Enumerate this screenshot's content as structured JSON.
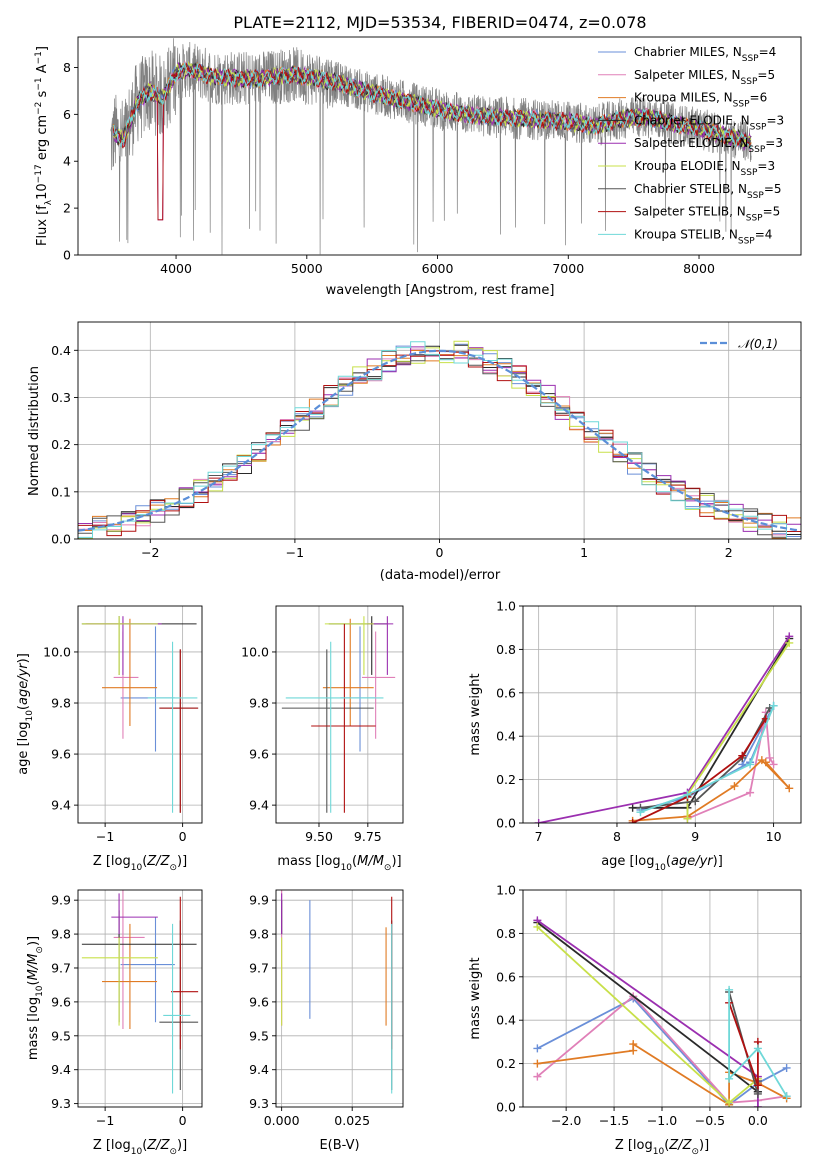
{
  "title": "PLATE=2112, MJD=53534, FIBERID=0474, z=0.078",
  "colors": {
    "data_spectrum": "#808080",
    "chabrier_miles": "#6a8fd8",
    "salpeter_miles": "#e080b8",
    "kroupa_miles": "#e07b24",
    "chabrier_elodie": "#2a2a2a",
    "salpeter_elodie": "#9b2fb0",
    "kroupa_elodie": "#c8e04a",
    "chabrier_stelib": "#555555",
    "salpeter_stelib": "#b01010",
    "kroupa_stelib": "#6fd8d8",
    "normal_curve": "#5b8fd8",
    "grid": "#b0b0b0"
  },
  "chart_data": [
    {
      "id": "spectrum",
      "type": "line",
      "xlabel": "wavelength [Angstrom, rest frame]",
      "ylabel": "Flux [f_λ 10^-17 erg cm^-2 s^-1 A^-1]",
      "xlim": [
        3250,
        8780
      ],
      "ylim": [
        0,
        9.3
      ],
      "xticks": [
        "4000",
        "5000",
        "6000",
        "7000",
        "8000"
      ],
      "yticks": [
        "0",
        "2",
        "4",
        "6",
        "8"
      ],
      "grid": false,
      "legend_position": "upper-right",
      "legend": [
        "Chabrier MILES, N_SSP=4",
        "Salpeter MILES, N_SSP=5",
        "Kroupa MILES, N_SSP=6",
        "Chabrier ELODIE, N_SSP=3",
        "Salpeter ELODIE, N_SSP=3",
        "Kroupa ELODIE, N_SSP=3",
        "Chabrier STELIB, N_SSP=5",
        "Salpeter STELIB, N_SSP=5",
        "Kroupa STELIB, N_SSP=4"
      ],
      "data_range": [
        3500,
        8400
      ],
      "model_continuum": [
        [
          3520,
          5.2
        ],
        [
          3600,
          4.9
        ],
        [
          3700,
          6.5
        ],
        [
          3800,
          7.0
        ],
        [
          3900,
          6.7
        ],
        [
          4000,
          7.8
        ],
        [
          4100,
          7.9
        ],
        [
          4300,
          7.6
        ],
        [
          4600,
          7.5
        ],
        [
          4900,
          7.7
        ],
        [
          5200,
          7.4
        ],
        [
          5500,
          6.9
        ],
        [
          5800,
          6.5
        ],
        [
          6100,
          6.1
        ],
        [
          6400,
          5.9
        ],
        [
          6700,
          5.8
        ],
        [
          7000,
          5.7
        ],
        [
          7200,
          5.5
        ],
        [
          7400,
          5.8
        ],
        [
          7600,
          5.9
        ],
        [
          7800,
          5.6
        ],
        [
          8000,
          5.4
        ],
        [
          8200,
          5.1
        ],
        [
          8400,
          4.8
        ]
      ]
    },
    {
      "id": "residual-histogram",
      "type": "line",
      "xlabel": "(data-model)/error",
      "ylabel": "Normed distribution",
      "xlim": [
        -2.5,
        2.5
      ],
      "ylim": [
        0,
        0.46
      ],
      "xticks": [
        "−2",
        "−1",
        "0",
        "1",
        "2"
      ],
      "yticks": [
        "0.0",
        "0.1",
        "0.2",
        "0.3",
        "0.4"
      ],
      "grid": true,
      "legend": [
        "𝒩(0,1)"
      ],
      "legend_position": "upper-right",
      "bin_width": 0.1
    },
    {
      "id": "age-vs-z",
      "type": "scatter",
      "xlabel": "Z [log10(Z/Z⊙)]",
      "ylabel": "age [log10(age/yr)]",
      "xlim": [
        -1.35,
        0.25
      ],
      "ylim": [
        9.33,
        10.18
      ],
      "xticks": [
        "−1",
        "0"
      ],
      "yticks": [
        "9.4",
        "9.6",
        "9.8",
        "10.0"
      ],
      "grid": true,
      "points": [
        {
          "model": "chabrier_miles",
          "x": -0.35,
          "xerr": [
            0.45,
            0.25
          ],
          "y": 9.82,
          "yerr": [
            0.21,
            0.28
          ]
        },
        {
          "model": "salpeter_miles",
          "x": -0.77,
          "xerr": [
            0.12,
            0.2
          ],
          "y": 9.9,
          "yerr": [
            0.24,
            0.18
          ]
        },
        {
          "model": "kroupa_miles",
          "x": -0.68,
          "xerr": [
            0.36,
            0.35
          ],
          "y": 9.86,
          "yerr": [
            0.15,
            0.27
          ]
        },
        {
          "model": "chabrier_elodie",
          "x": -0.82,
          "xerr": [
            0.48,
            1.0
          ],
          "y": 10.11,
          "yerr": [
            0.2,
            0.03
          ]
        },
        {
          "model": "salpeter_elodie",
          "x": -0.77,
          "xerr": [
            0.48,
            0.5
          ],
          "y": 10.11,
          "yerr": [
            0.2,
            0.03
          ]
        },
        {
          "model": "kroupa_elodie",
          "x": -0.82,
          "xerr": [
            0.48,
            0.5
          ],
          "y": 10.11,
          "yerr": [
            0.2,
            0.03
          ]
        },
        {
          "model": "chabrier_stelib",
          "x": -0.03,
          "xerr": [
            0.27,
            0.23
          ],
          "y": 9.78,
          "yerr": [
            0.41,
            0.23
          ]
        },
        {
          "model": "salpeter_stelib",
          "x": -0.03,
          "xerr": [
            0.27,
            0.23
          ],
          "y": 9.78,
          "yerr": [
            0.41,
            0.23
          ]
        },
        {
          "model": "kroupa_stelib",
          "x": -0.13,
          "xerr": [
            0.32,
            0.32
          ],
          "y": 9.82,
          "yerr": [
            0.45,
            0.22
          ]
        }
      ]
    },
    {
      "id": "age-vs-mass",
      "type": "scatter",
      "xlabel": "mass [log10(M/M⊙)]",
      "ylabel": "",
      "xlim": [
        9.28,
        9.93
      ],
      "ylim": [
        9.33,
        10.18
      ],
      "xticks": [
        "9.50",
        "9.75"
      ],
      "yticks": [
        "9.4",
        "9.6",
        "9.8",
        "10.0"
      ],
      "grid": true,
      "points": [
        {
          "model": "chabrier_miles",
          "x": 9.71,
          "xerr": [
            0.1,
            0.08
          ],
          "y": 9.82,
          "yerr": [
            0.21,
            0.28
          ]
        },
        {
          "model": "salpeter_miles",
          "x": 9.79,
          "xerr": [
            0.07,
            0.1
          ],
          "y": 9.9,
          "yerr": [
            0.24,
            0.18
          ]
        },
        {
          "model": "kroupa_miles",
          "x": 9.66,
          "xerr": [
            0.14,
            0.12
          ],
          "y": 9.86,
          "yerr": [
            0.15,
            0.27
          ]
        },
        {
          "model": "chabrier_elodie",
          "x": 9.77,
          "xerr": [
            0.22,
            0.08
          ],
          "y": 10.11,
          "yerr": [
            0.2,
            0.03
          ]
        },
        {
          "model": "salpeter_elodie",
          "x": 9.85,
          "xerr": [
            0.1,
            0.03
          ],
          "y": 10.11,
          "yerr": [
            0.2,
            0.03
          ]
        },
        {
          "model": "kroupa_elodie",
          "x": 9.73,
          "xerr": [
            0.2,
            0.05
          ],
          "y": 10.11,
          "yerr": [
            0.2,
            0.03
          ]
        },
        {
          "model": "chabrier_stelib",
          "x": 9.54,
          "xerr": [
            0.23,
            0.24
          ],
          "y": 9.78,
          "yerr": [
            0.41,
            0.23
          ]
        },
        {
          "model": "salpeter_stelib",
          "x": 9.63,
          "xerr": [
            0.17,
            0.16
          ],
          "y": 9.71,
          "yerr": [
            0.34,
            0.4
          ]
        },
        {
          "model": "kroupa_stelib",
          "x": 9.56,
          "xerr": [
            0.23,
            0.27
          ],
          "y": 9.82,
          "yerr": [
            0.45,
            0.22
          ]
        }
      ]
    },
    {
      "id": "mass-weight-vs-age",
      "type": "line",
      "xlabel": "age [log10(age/yr)]",
      "ylabel": "mass weight",
      "xlim": [
        6.8,
        10.35
      ],
      "ylim": [
        0,
        1.0
      ],
      "xticks": [
        "7",
        "8",
        "9",
        "10"
      ],
      "yticks": [
        "0.0",
        "0.2",
        "0.4",
        "0.6",
        "0.8",
        "1.0"
      ],
      "grid": true,
      "series": [
        {
          "model": "chabrier_miles",
          "x": [
            8.3,
            8.9,
            9.7,
            10.0,
            9.6
          ],
          "y": [
            0.06,
            0.12,
            0.28,
            0.54,
            0.27
          ]
        },
        {
          "model": "salpeter_miles",
          "x": [
            8.9,
            9.7,
            9.9,
            9.95,
            10.0
          ],
          "y": [
            0.02,
            0.14,
            0.51,
            0.3,
            0.27
          ]
        },
        {
          "model": "kroupa_miles",
          "x": [
            8.2,
            8.9,
            9.5,
            9.85,
            10.2,
            9.9
          ],
          "y": [
            0.01,
            0.03,
            0.17,
            0.29,
            0.16,
            0.28
          ]
        },
        {
          "model": "chabrier_elodie",
          "x": [
            8.2,
            8.9,
            10.2
          ],
          "y": [
            0.07,
            0.07,
            0.85
          ]
        },
        {
          "model": "salpeter_elodie",
          "x": [
            7.0,
            8.9,
            10.2
          ],
          "y": [
            0.0,
            0.14,
            0.86
          ]
        },
        {
          "model": "kroupa_elodie",
          "x": [
            8.9,
            8.9,
            10.2
          ],
          "y": [
            0.02,
            0.13,
            0.83
          ]
        },
        {
          "model": "chabrier_stelib",
          "x": [
            8.3,
            9.0,
            9.6,
            9.95
          ],
          "y": [
            0.07,
            0.1,
            0.3,
            0.53
          ]
        },
        {
          "model": "salpeter_stelib",
          "x": [
            8.2,
            8.9,
            9.6,
            9.9
          ],
          "y": [
            0.0,
            0.12,
            0.31,
            0.48
          ]
        },
        {
          "model": "kroupa_stelib",
          "x": [
            8.3,
            8.9,
            9.7,
            10.0
          ],
          "y": [
            0.05,
            0.13,
            0.27,
            0.54
          ]
        }
      ]
    },
    {
      "id": "mass-vs-z",
      "type": "scatter",
      "xlabel": "Z [log10(Z/Z⊙)]",
      "ylabel": "mass [log10(M/M⊙)]",
      "xlim": [
        -1.35,
        0.25
      ],
      "ylim": [
        9.29,
        9.93
      ],
      "xticks": [
        "−1",
        "0"
      ],
      "yticks": [
        "9.3",
        "9.4",
        "9.5",
        "9.6",
        "9.7",
        "9.8",
        "9.9"
      ],
      "grid": true,
      "points": [
        {
          "model": "chabrier_miles",
          "x": -0.35,
          "xerr": [
            0.45,
            0.25
          ],
          "y": 9.71,
          "yerr": [
            0.17,
            0.14
          ]
        },
        {
          "model": "salpeter_miles",
          "x": -0.77,
          "xerr": [
            0.12,
            0.28
          ],
          "y": 9.79,
          "yerr": [
            0.27,
            0.14
          ]
        },
        {
          "model": "kroupa_miles",
          "x": -0.68,
          "xerr": [
            0.36,
            0.35
          ],
          "y": 9.66,
          "yerr": [
            0.14,
            0.17
          ]
        },
        {
          "model": "chabrier_elodie",
          "x": -0.82,
          "xerr": [
            0.48,
            1.0
          ],
          "y": 9.77,
          "yerr": [
            0.23,
            0.1
          ]
        },
        {
          "model": "salpeter_elodie",
          "x": -0.82,
          "xerr": [
            0.1,
            0.5
          ],
          "y": 9.85,
          "yerr": [
            0.05,
            0.07
          ]
        },
        {
          "model": "kroupa_elodie",
          "x": -0.82,
          "xerr": [
            0.48,
            0.5
          ],
          "y": 9.73,
          "yerr": [
            0.2,
            0.06
          ]
        },
        {
          "model": "chabrier_stelib",
          "x": -0.03,
          "xerr": [
            0.27,
            0.23
          ],
          "y": 9.54,
          "yerr": [
            0.2,
            0.3
          ]
        },
        {
          "model": "salpeter_stelib",
          "x": -0.03,
          "xerr": [
            0.12,
            0.23
          ],
          "y": 9.63,
          "yerr": [
            0.17,
            0.28
          ]
        },
        {
          "model": "kroupa_stelib",
          "x": -0.13,
          "xerr": [
            0.12,
            0.23
          ],
          "y": 9.56,
          "yerr": [
            0.23,
            0.27
          ]
        }
      ]
    },
    {
      "id": "mass-vs-ebv",
      "type": "scatter",
      "xlabel": "E(B-V)",
      "ylabel": "",
      "xlim": [
        -0.002,
        0.043
      ],
      "ylim": [
        9.29,
        9.93
      ],
      "xticks": [
        "0.000",
        "0.025"
      ],
      "yticks": [
        "9.3",
        "9.4",
        "9.5",
        "9.6",
        "9.7",
        "9.8",
        "9.9"
      ],
      "grid": true,
      "points": [
        {
          "model": "chabrier_miles",
          "x": 0.01,
          "yerr": [
            0.17,
            0.18
          ],
          "y": 9.72
        },
        {
          "model": "salpeter_miles",
          "x": 0.0,
          "yerr": [
            0.27,
            0.14
          ],
          "y": 9.8
        },
        {
          "model": "kroupa_miles",
          "x": 0.037,
          "yerr": [
            0.14,
            0.15
          ],
          "y": 9.67
        },
        {
          "model": "chabrier_elodie",
          "x": 0.0,
          "yerr": [
            0.05,
            0.05
          ],
          "y": 9.85
        },
        {
          "model": "salpeter_elodie",
          "x": 0.0,
          "yerr": [
            0.05,
            0.07
          ],
          "y": 9.85
        },
        {
          "model": "kroupa_elodie",
          "x": 0.0,
          "yerr": [
            0.2,
            0.06
          ],
          "y": 9.73
        },
        {
          "model": "chabrier_stelib",
          "x": 0.039,
          "yerr": [
            0.2,
            0.3
          ],
          "y": 9.54
        },
        {
          "model": "salpeter_stelib",
          "x": 0.039,
          "yerr": [
            0.17,
            0.28
          ],
          "y": 9.63
        },
        {
          "model": "kroupa_stelib",
          "x": 0.039,
          "yerr": [
            0.23,
            0.27
          ],
          "y": 9.56
        }
      ]
    },
    {
      "id": "mass-weight-vs-z",
      "type": "line",
      "xlabel": "Z [log10(Z/Z⊙)]",
      "ylabel": "mass weight",
      "xlim": [
        -2.45,
        0.45
      ],
      "ylim": [
        0,
        1.0
      ],
      "xticks": [
        "−2.0",
        "−1.5",
        "−1.0",
        "−0.5",
        "0.0"
      ],
      "yticks": [
        "0.0",
        "0.2",
        "0.4",
        "0.6",
        "0.8",
        "1.0"
      ],
      "grid": true,
      "series": [
        {
          "model": "chabrier_miles",
          "x": [
            -2.3,
            -1.3,
            -0.3,
            0.0,
            0.3
          ],
          "y": [
            0.27,
            0.5,
            0.01,
            0.11,
            0.18
          ]
        },
        {
          "model": "salpeter_miles",
          "x": [
            -2.3,
            -1.3,
            -0.3,
            0.0,
            0.3
          ],
          "y": [
            0.14,
            0.51,
            0.02,
            0.03,
            0.05
          ]
        },
        {
          "model": "kroupa_miles",
          "x": [
            -2.3,
            -1.3,
            -1.3,
            -0.3,
            -0.3,
            0.0,
            0.3
          ],
          "y": [
            0.2,
            0.26,
            0.29,
            0.01,
            0.16,
            0.11,
            0.04
          ]
        },
        {
          "model": "chabrier_elodie",
          "x": [
            -2.3,
            0.0,
            0.0
          ],
          "y": [
            0.85,
            0.07,
            0.07
          ]
        },
        {
          "model": "salpeter_elodie",
          "x": [
            -2.3,
            0.0,
            0.0
          ],
          "y": [
            0.86,
            0.14,
            0.0
          ]
        },
        {
          "model": "kroupa_elodie",
          "x": [
            -2.3,
            -0.3,
            0.0
          ],
          "y": [
            0.83,
            0.02,
            0.13
          ]
        },
        {
          "model": "chabrier_stelib",
          "x": [
            -0.3,
            0.0,
            0.0
          ],
          "y": [
            0.53,
            0.06,
            0.12
          ]
        },
        {
          "model": "salpeter_stelib",
          "x": [
            -0.3,
            0.0,
            0.0
          ],
          "y": [
            0.48,
            0.1,
            0.3
          ]
        },
        {
          "model": "kroupa_stelib",
          "x": [
            -0.3,
            -0.3,
            0.0,
            0.3
          ],
          "y": [
            0.54,
            0.13,
            0.27,
            0.05
          ]
        }
      ]
    }
  ]
}
